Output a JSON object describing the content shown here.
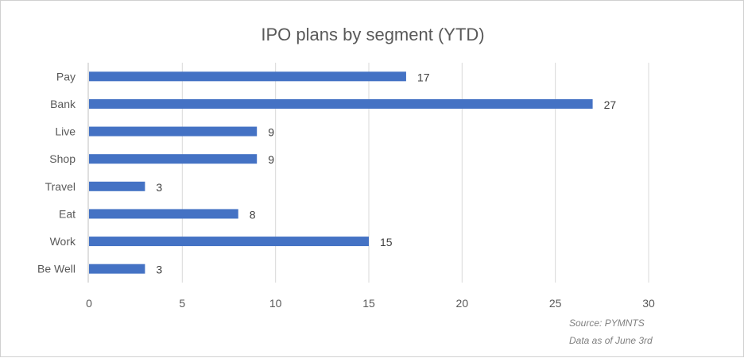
{
  "chart_data": {
    "type": "bar",
    "orientation": "horizontal",
    "title": "IPO plans by segment (YTD)",
    "categories": [
      "Pay",
      "Bank",
      "Live",
      "Shop",
      "Travel",
      "Eat",
      "Work",
      "Be Well"
    ],
    "values": [
      17,
      27,
      9,
      9,
      3,
      8,
      15,
      3
    ],
    "xlim": [
      0,
      30
    ],
    "xticks": [
      0,
      5,
      10,
      15,
      20,
      25,
      30
    ],
    "grid": true,
    "data_labels": true,
    "bar_color": "#4472C4",
    "annotations": [
      "Source:  PYMNTS",
      "Data as of June 3rd"
    ]
  }
}
